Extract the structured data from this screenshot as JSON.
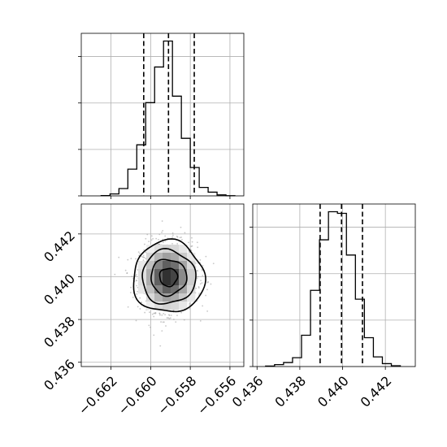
{
  "chart_data": {
    "type": "corner",
    "parameters": [
      "",
      ""
    ],
    "marginals": [
      {
        "type": "histogram",
        "parameter_index": 0,
        "x_range": [
          -0.6635,
          -0.6553
        ],
        "bin_edges": [
          -0.6625,
          -0.66205,
          -0.6616,
          -0.66115,
          -0.6607,
          -0.66025,
          -0.6598,
          -0.65935,
          -0.6589,
          -0.65845,
          -0.658,
          -0.65755,
          -0.6571,
          -0.65665,
          -0.6562,
          -0.65575
        ],
        "counts": [
          2,
          12,
          45,
          165,
          315,
          575,
          795,
          955,
          615,
          355,
          175,
          52,
          23,
          6,
          1
        ],
        "quantiles": [
          -0.66035,
          -0.6591,
          -0.6578
        ],
        "x_ticks": [
          -0.662,
          -0.66,
          -0.658,
          -0.656
        ],
        "show_tick_labels": false,
        "grid": true
      },
      {
        "type": "histogram",
        "parameter_index": 1,
        "x_range": [
          0.4358,
          0.4434
        ],
        "bin_edges": [
          0.4364,
          0.43682,
          0.43724,
          0.43766,
          0.43808,
          0.4385,
          0.43892,
          0.43934,
          0.43976,
          0.44018,
          0.4406,
          0.44102,
          0.44144,
          0.44186,
          0.44228,
          0.4427
        ],
        "counts": [
          3,
          12,
          25,
          55,
          195,
          475,
          790,
          965,
          955,
          695,
          420,
          180,
          60,
          18,
          5
        ],
        "quantiles": [
          0.43895,
          0.43995,
          0.44093
        ],
        "x_ticks": [
          0.436,
          0.438,
          0.44,
          0.442
        ],
        "x_tick_labels": [
          "0.436",
          "0.438",
          "0.440",
          "0.442"
        ],
        "grid": true
      }
    ],
    "joint": {
      "type": "scatter+density+contour",
      "x_parameter": 0,
      "y_parameter": 1,
      "x_range": [
        -0.6635,
        -0.6553
      ],
      "y_range": [
        0.4358,
        0.4434
      ],
      "center": [
        -0.6591,
        0.43998
      ],
      "spread": [
        0.00072,
        0.0008
      ],
      "x_ticks": [
        -0.662,
        -0.66,
        -0.658,
        -0.656
      ],
      "x_tick_labels": [
        "−0.662",
        "−0.660",
        "−0.658",
        "−0.656"
      ],
      "y_ticks": [
        0.436,
        0.438,
        0.44,
        0.442
      ],
      "y_tick_labels": [
        "0.436",
        "0.438",
        "0.440",
        "0.442"
      ],
      "contour_sigma_radii": [
        0.5,
        1.0,
        1.5,
        2.0
      ],
      "grid": true
    },
    "colors": {
      "ink": "#000000",
      "grid": "#b0b0b0",
      "points": "#9a9a9a"
    }
  }
}
